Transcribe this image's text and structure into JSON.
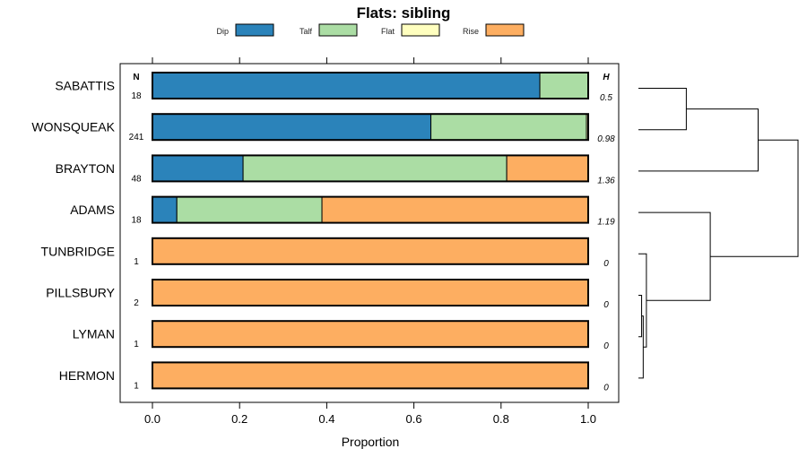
{
  "chart_data": {
    "type": "bar",
    "orientation": "horizontal",
    "stacked": true,
    "title": "Flats: sibling",
    "xlabel": "Proportion",
    "ylabel": "",
    "xlim": [
      0,
      1
    ],
    "x_ticks": [
      "0.0",
      "0.2",
      "0.4",
      "0.6",
      "0.8",
      "1.0"
    ],
    "n_header": "N",
    "h_header": "H",
    "legend": [
      {
        "name": "Dip",
        "color": "#2b83ba"
      },
      {
        "name": "Talf",
        "color": "#abdda4"
      },
      {
        "name": "Flat",
        "color": "#ffffbf"
      },
      {
        "name": "Rise",
        "color": "#fdae61"
      }
    ],
    "categories": [
      "SABATTIS",
      "WONSQUEAK",
      "BRAYTON",
      "ADAMS",
      "TUNBRIDGE",
      "PILLSBURY",
      "LYMAN",
      "HERMON"
    ],
    "n": [
      "18",
      "241",
      "48",
      "18",
      "1",
      "2",
      "1",
      "1"
    ],
    "h": [
      "0.5",
      "0.98",
      "1.36",
      "1.19",
      "0",
      "0",
      "0",
      "0"
    ],
    "series": [
      {
        "name": "Dip",
        "values": [
          0.889,
          0.639,
          0.208,
          0.056,
          0,
          0,
          0,
          0
        ]
      },
      {
        "name": "Talf",
        "values": [
          0.111,
          0.357,
          0.605,
          0.333,
          0,
          0,
          0,
          0
        ]
      },
      {
        "name": "Flat",
        "values": [
          0,
          0.004,
          0,
          0,
          0,
          0,
          0,
          0
        ]
      },
      {
        "name": "Rise",
        "values": [
          0,
          0,
          0.187,
          0.611,
          1,
          1,
          1,
          1
        ]
      }
    ],
    "dendrogram": {
      "leaves": [
        "SABATTIS",
        "WONSQUEAK",
        "BRAYTON",
        "ADAMS",
        "TUNBRIDGE",
        "PILLSBURY",
        "LYMAN",
        "HERMON"
      ],
      "merges": [
        {
          "a": 5,
          "b": 6,
          "height": 0.02
        },
        {
          "a": 8,
          "b": 7,
          "height": 0.03
        },
        {
          "a": 4,
          "b": 9,
          "height": 0.05
        },
        {
          "a": 0,
          "b": 1,
          "height": 0.3
        },
        {
          "a": 3,
          "b": 10,
          "height": 0.45
        },
        {
          "a": 11,
          "b": 2,
          "height": 0.75
        },
        {
          "a": 13,
          "b": 12,
          "height": 1.0
        }
      ]
    }
  }
}
